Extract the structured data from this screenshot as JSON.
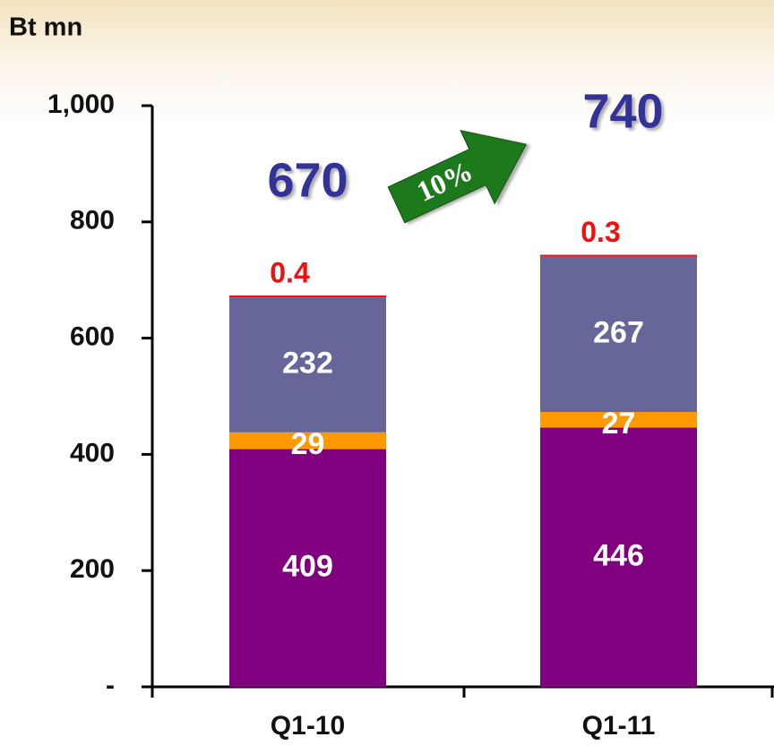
{
  "chart_data": {
    "type": "stacked_bar",
    "y_label": "Bt mn",
    "categories": [
      "Q1-10",
      "Q1-11"
    ],
    "series": [
      {
        "color": "#800080",
        "values": [
          409,
          446
        ]
      },
      {
        "color": "#ff9900",
        "values": [
          29,
          27
        ]
      },
      {
        "color": "#666699",
        "values": [
          232,
          267
        ]
      },
      {
        "color": "#ee1111",
        "values": [
          0.4,
          0.3
        ]
      }
    ],
    "totals": [
      670,
      740
    ],
    "growth": "10%",
    "ylim": [
      0,
      1000
    ],
    "yticks": [
      {
        "value": 0,
        "label": "-"
      },
      200,
      400,
      600,
      800,
      {
        "value": 1000,
        "label": "1,000"
      }
    ]
  }
}
